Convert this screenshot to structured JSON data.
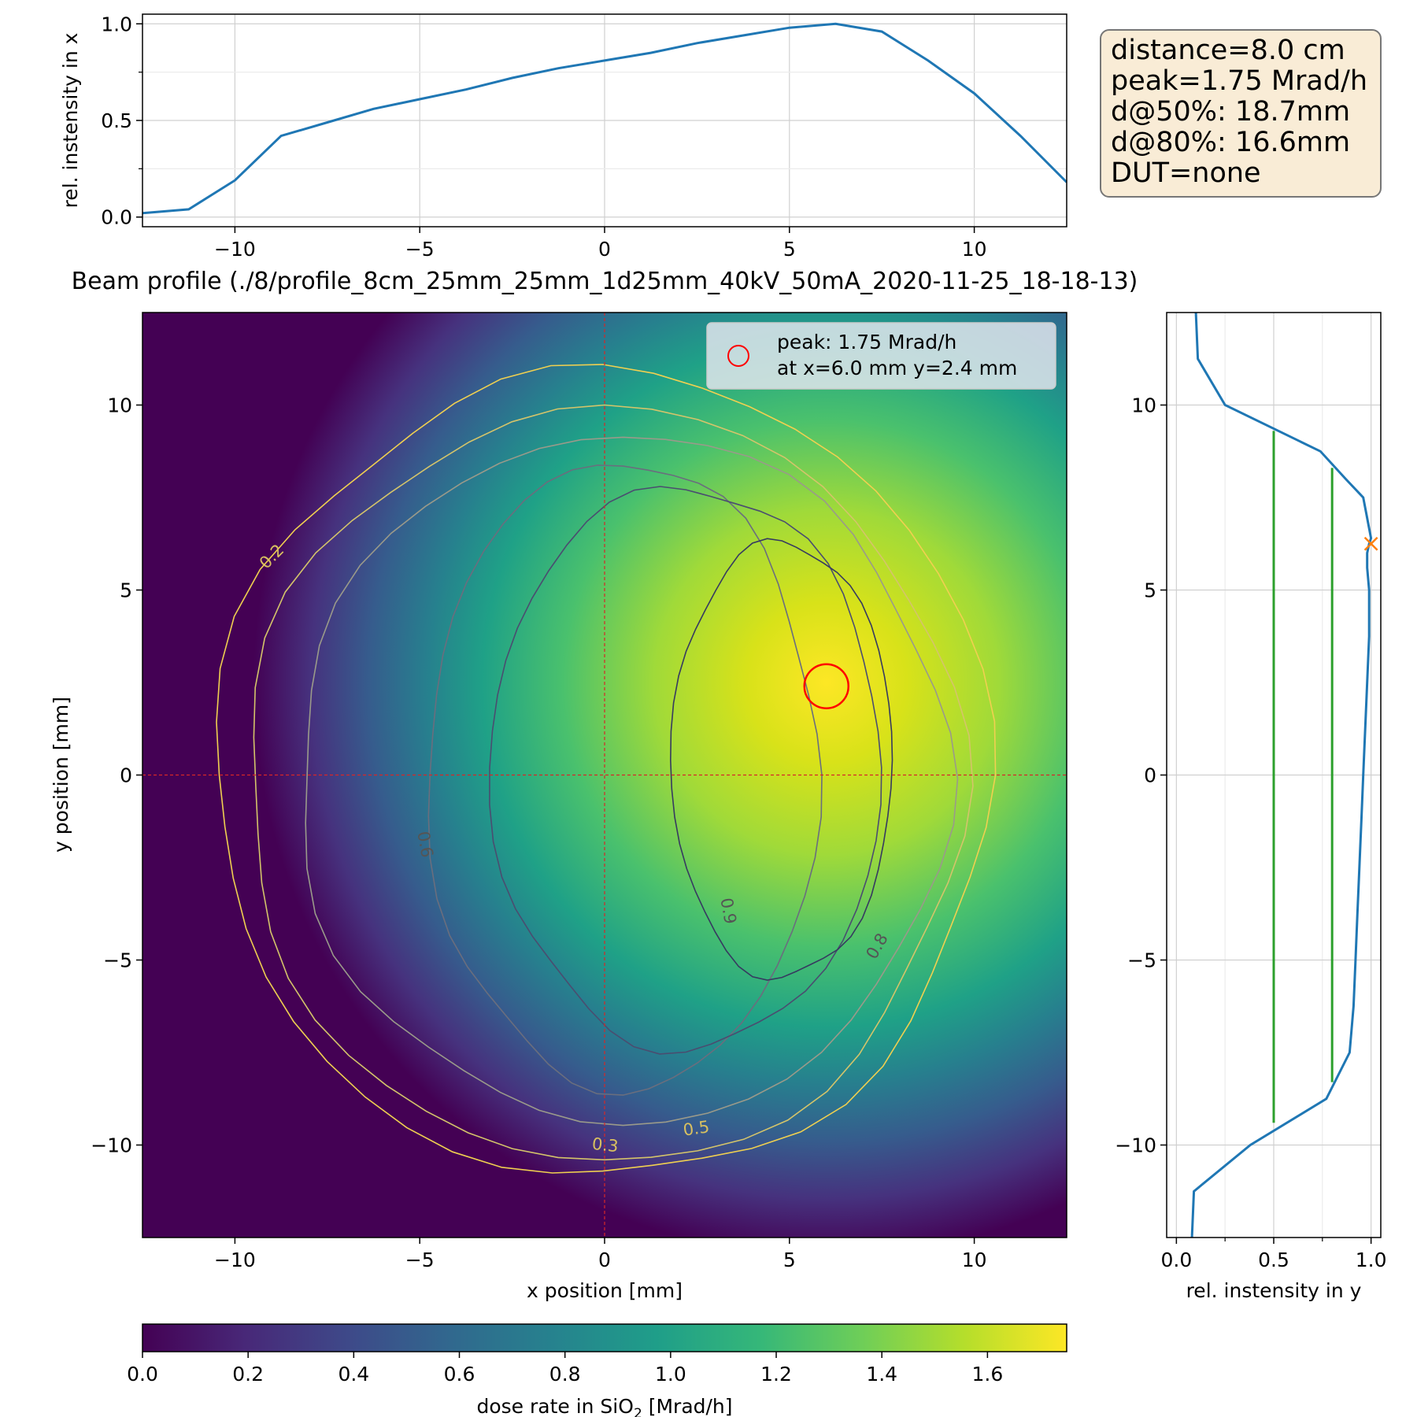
{
  "title": "Beam profile (./8/profile_8cm_25mm_25mm_1d25mm_40kV_50mA_2020-11-25_18-18-13)",
  "info_box": {
    "lines": [
      "distance=8.0 cm",
      "peak=1.75 Mrad/h",
      "d@50%: 18.7mm",
      "d@80%: 16.6mm",
      "DUT=none"
    ],
    "background": "#f9ecd6",
    "border": "#777777"
  },
  "chart_data": [
    {
      "id": "x-profile",
      "type": "line",
      "xlabel": "",
      "ylabel": "rel. instensity in x",
      "xlim": [
        -12.5,
        12.5
      ],
      "ylim": [
        -0.05,
        1.05
      ],
      "xticks": [
        -10,
        -5,
        0,
        5,
        10
      ],
      "xtick_labels": [
        "−10",
        "−5",
        "0",
        "5",
        "10"
      ],
      "yticks": [
        0.0,
        0.5,
        1.0
      ],
      "ytick_labels": [
        "0.0",
        "0.5",
        "1.0"
      ],
      "grid": true,
      "color": "#1f77b4",
      "x": [
        -12.5,
        -11.25,
        -10,
        -8.75,
        -7.5,
        -6.25,
        -5,
        -3.75,
        -2.5,
        -1.25,
        0,
        1.25,
        2.5,
        3.75,
        5,
        6.25,
        7.5,
        8.75,
        10,
        11.25,
        12.5
      ],
      "y": [
        0.02,
        0.04,
        0.19,
        0.42,
        0.49,
        0.56,
        0.61,
        0.66,
        0.72,
        0.77,
        0.81,
        0.85,
        0.9,
        0.94,
        0.98,
        1.0,
        0.96,
        0.81,
        0.64,
        0.42,
        0.18
      ]
    },
    {
      "id": "heatmap",
      "type": "heatmap",
      "xlabel": "x position [mm]",
      "ylabel": "y position [mm]",
      "xlim": [
        -12.5,
        12.5
      ],
      "ylim": [
        -12.5,
        12.5
      ],
      "xticks": [
        -10,
        -5,
        0,
        5,
        10
      ],
      "xtick_labels": [
        "−10",
        "−5",
        "0",
        "5",
        "10"
      ],
      "yticks": [
        -10,
        -5,
        0,
        5,
        10
      ],
      "ytick_labels": [
        "−10",
        "−5",
        "0",
        "5",
        "10"
      ],
      "peak": {
        "x": 6.0,
        "y": 2.4,
        "value": 1.75,
        "unit": "Mrad/h"
      },
      "legend": {
        "placement": "top-right",
        "lines": [
          "peak: 1.75 Mrad/h",
          "at x=6.0 mm y=2.4 mm"
        ]
      },
      "crosshair": {
        "x": 0,
        "y": 0,
        "color": "#d62728"
      },
      "contour_levels": [
        0.2,
        0.3,
        0.5,
        0.6,
        0.8,
        0.9
      ],
      "contour_labels": [
        {
          "text": "0.2",
          "x": -8.9,
          "y": 5.8,
          "angle": -45
        },
        {
          "text": "0.3",
          "x": 0.0,
          "y": -10.15,
          "angle": 6
        },
        {
          "text": "0.5",
          "x": 2.5,
          "y": -9.7,
          "angle": -8
        },
        {
          "text": "0.6",
          "x": -5.0,
          "y": -1.9,
          "angle": 80
        },
        {
          "text": "0.8",
          "x": 7.5,
          "y": -4.7,
          "angle": -60
        },
        {
          "text": "0.9",
          "x": 3.2,
          "y": -3.7,
          "angle": 80
        }
      ],
      "colormap": [
        "#440154",
        "#482878",
        "#3e4989",
        "#31688e",
        "#26828e",
        "#1f9e89",
        "#35b779",
        "#6ece58",
        "#b5de2b",
        "#fde725"
      ]
    },
    {
      "id": "y-profile",
      "type": "line",
      "xlabel": "rel. instensity in y",
      "ylabel": "",
      "xlim": [
        -0.05,
        1.05
      ],
      "ylim": [
        -12.5,
        12.5
      ],
      "xticks": [
        0.0,
        0.5,
        1.0
      ],
      "xtick_labels": [
        "0.0",
        "0.5",
        "1.0"
      ],
      "yticks": [
        -10,
        -5,
        0,
        5,
        10
      ],
      "ytick_labels": [
        "−10",
        "−5",
        "0",
        "5",
        "10"
      ],
      "grid": true,
      "color": "#1f77b4",
      "x": [
        0.08,
        0.09,
        0.38,
        0.77,
        0.89,
        0.91,
        0.92,
        0.93,
        0.94,
        0.95,
        0.96,
        0.97,
        0.98,
        0.99,
        0.99,
        0.98,
        0.98,
        0.99,
        1.0,
        0.96,
        0.87,
        0.74,
        0.25,
        0.11,
        0.1
      ],
      "y": [
        -12.5,
        -11.25,
        -10,
        -8.75,
        -7.5,
        -6.25,
        -5,
        -3.75,
        -2.5,
        -1.25,
        0,
        1.25,
        2.5,
        3.75,
        5,
        5.6,
        6.0,
        6.25,
        6.4,
        7.5,
        8.0,
        8.75,
        10,
        11.25,
        12.5
      ],
      "marker": {
        "x": 1.0,
        "y": 6.25,
        "color": "#ff7f0e"
      },
      "threshold_lines": [
        {
          "x": 0.5,
          "y_from": -9.4,
          "y_to": 9.3,
          "color": "#2ca02c"
        },
        {
          "x": 0.8,
          "y_from": -8.3,
          "y_to": 8.3,
          "color": "#2ca02c"
        }
      ]
    },
    {
      "id": "colorbar",
      "type": "colorbar",
      "xlabel": "dose rate in SiO",
      "label_sub": "2",
      "label_suffix": " [Mrad/h]",
      "xlim": [
        0,
        1.75
      ],
      "xticks": [
        0.0,
        0.2,
        0.4,
        0.6,
        0.8,
        1.0,
        1.2,
        1.4,
        1.6
      ],
      "xtick_labels": [
        "0.0",
        "0.2",
        "0.4",
        "0.6",
        "0.8",
        "1.0",
        "1.2",
        "1.4",
        "1.6"
      ]
    }
  ]
}
